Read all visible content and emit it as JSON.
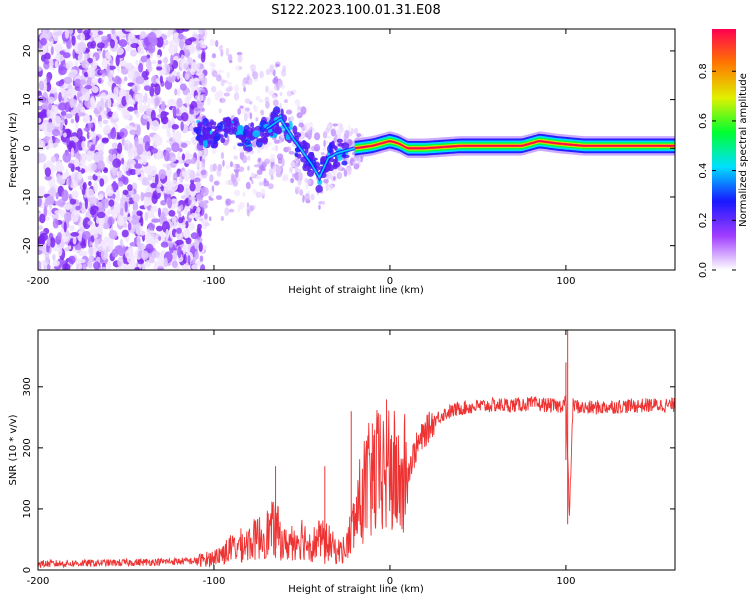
{
  "title": "S122.2023.100.01.31.E08",
  "chart_data": [
    {
      "type": "heatmap",
      "xlabel": "Height of straight line (km)",
      "ylabel": "Frequency (Hz)",
      "xlim": [
        -200,
        162
      ],
      "ylim": [
        -25,
        24.5
      ],
      "xticks": [
        -200,
        -100,
        0,
        100
      ],
      "yticks": [
        -20,
        -10,
        0,
        10,
        20
      ],
      "colorbar": {
        "label": "Normalized spectral amplitude",
        "range": [
          0,
          0.97
        ],
        "ticks": [
          "0.0",
          "0.2",
          "0.4",
          "0.6",
          "0.8"
        ],
        "colors": [
          "#ffffff",
          "#a03cff",
          "#1818ff",
          "#00e0ff",
          "#00ff30",
          "#e0f000",
          "#ff7800",
          "#ff0050"
        ]
      },
      "ridge": {
        "description_values": "dominant frequency track",
        "x": [
          -112,
          -100,
          -90,
          -80,
          -70,
          -62,
          -55,
          -45,
          -40,
          -35,
          -30,
          -20,
          -10,
          0,
          5,
          10,
          20,
          40,
          60,
          75,
          85,
          95,
          110,
          162
        ],
        "y": [
          3,
          3,
          4,
          2,
          4,
          6,
          2,
          -3,
          -6,
          -2,
          -1,
          0,
          0.5,
          1.5,
          1,
          0,
          0,
          0.5,
          0.5,
          0.5,
          1.5,
          1,
          0.5,
          0.5
        ]
      }
    },
    {
      "type": "line",
      "xlabel": "Height of straight line (km)",
      "ylabel": "SNR (10 * v/v)",
      "xlim": [
        -200,
        162
      ],
      "ylim": [
        0,
        393
      ],
      "xticks": [
        -200,
        -100,
        0,
        100
      ],
      "yticks": [
        0,
        100,
        200,
        300
      ],
      "color": "#ee3333",
      "series": [
        {
          "x": [
            -200,
            -150,
            -110,
            -100,
            -90,
            -80,
            -70,
            -65,
            -60,
            -50,
            -45,
            -40,
            -35,
            -30,
            -25,
            -20,
            -15,
            -10,
            -5,
            0,
            5,
            10,
            15,
            20,
            25,
            30,
            40,
            50,
            60,
            70,
            80,
            90,
            95,
            98,
            100,
            102,
            104,
            110,
            130,
            150,
            162
          ],
          "y": [
            10,
            12,
            15,
            20,
            35,
            45,
            60,
            70,
            40,
            55,
            40,
            50,
            45,
            30,
            35,
            80,
            130,
            150,
            160,
            170,
            140,
            160,
            200,
            225,
            245,
            255,
            265,
            268,
            270,
            270,
            272,
            270,
            268,
            270,
            280,
            90,
            270,
            265,
            268,
            270,
            270
          ]
        }
      ],
      "spikes": [
        {
          "x": 101,
          "min": 75,
          "max": 393
        },
        {
          "x": 100,
          "min": 180,
          "max": 340
        },
        {
          "x": -65,
          "min": 20,
          "max": 170
        },
        {
          "x": -37,
          "min": 10,
          "max": 170
        },
        {
          "x": -22,
          "min": 80,
          "max": 260
        },
        {
          "x": -10,
          "min": 100,
          "max": 240
        }
      ]
    }
  ]
}
